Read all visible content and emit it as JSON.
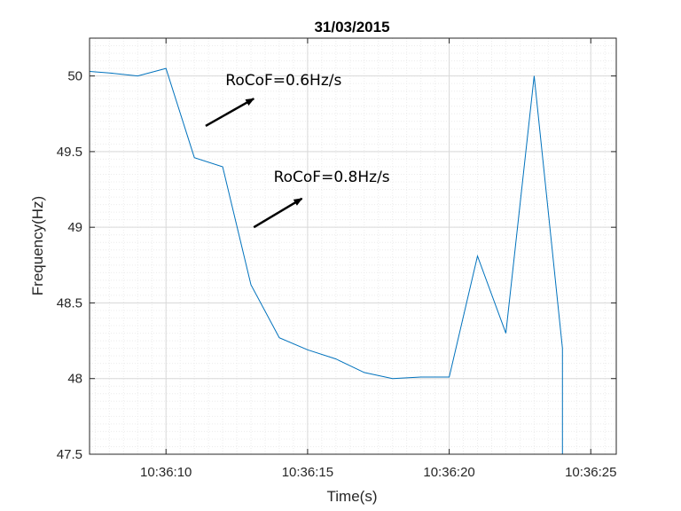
{
  "chart_data": {
    "type": "line",
    "title": "31/03/2015",
    "xlabel": "Time(s)",
    "ylabel": "Frequency(Hz)",
    "xlim": [
      "10:36:07.3",
      "10:36:25.9"
    ],
    "ylim": [
      47.5,
      50.25
    ],
    "grid": "major and minor",
    "x_ticks": [
      "10:36:10",
      "10:36:15",
      "10:36:20",
      "10:36:25"
    ],
    "y_ticks": [
      "47.5",
      "48",
      "48.5",
      "49",
      "49.5",
      "50"
    ],
    "line_color": "#0072BD",
    "series": [
      {
        "x": [
          "10:36:07.3",
          "10:36:08",
          "10:36:09",
          "10:36:10",
          "10:36:11",
          "10:36:12",
          "10:36:13",
          "10:36:14",
          "10:36:15",
          "10:36:16",
          "10:36:17",
          "10:36:18",
          "10:36:19",
          "10:36:20",
          "10:36:21",
          "10:36:22",
          "10:36:23",
          "10:36:24",
          "10:36:24",
          "10:36:24"
        ],
        "values": [
          50.03,
          50.02,
          50.0,
          50.05,
          49.46,
          49.4,
          48.62,
          48.27,
          48.19,
          48.13,
          48.04,
          48.0,
          48.01,
          48.01,
          48.81,
          48.3,
          50.0,
          48.2,
          48.2,
          47.5
        ]
      }
    ],
    "annotations": [
      {
        "text": "RoCoF=0.6Hz/s",
        "x": "10:36:12.1",
        "y": 49.94
      },
      {
        "text": "RoCoF=0.8Hz/s",
        "x": "10:36:13.8",
        "y": 49.3
      }
    ],
    "arrows": [
      {
        "from": {
          "x": "10:36:11.4",
          "y": 49.67
        },
        "to": {
          "x": "10:36:13.1",
          "y": 49.85
        }
      },
      {
        "from": {
          "x": "10:36:13.1",
          "y": 49.0
        },
        "to": {
          "x": "10:36:14.8",
          "y": 49.19
        }
      }
    ]
  }
}
